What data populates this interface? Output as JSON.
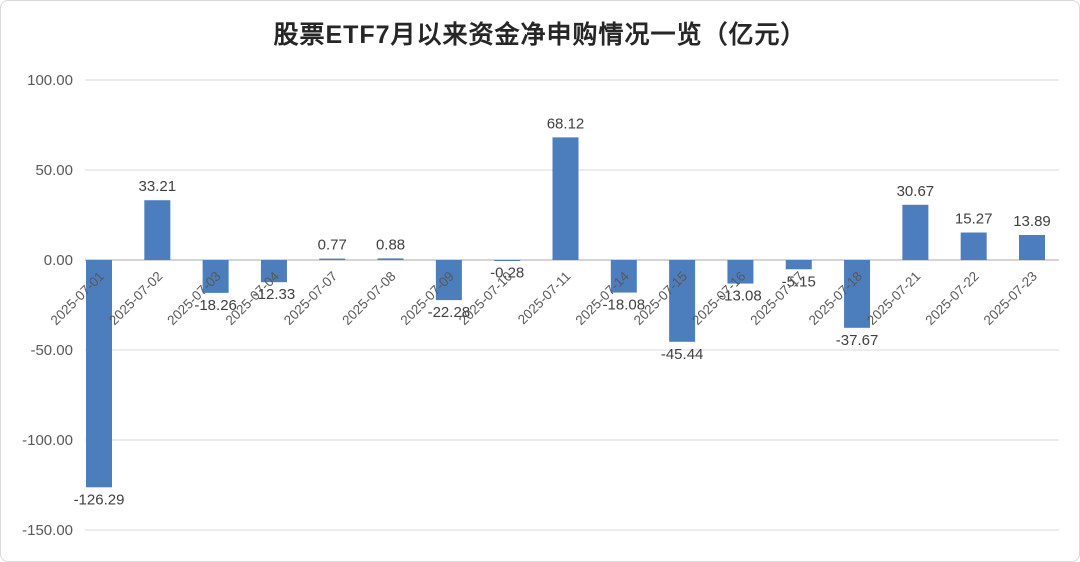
{
  "card": {
    "title": "股票ETF7月以来资金净申购情况一览（亿元）"
  },
  "chart_data": {
    "type": "bar",
    "title": "股票ETF7月以来资金净申购情况一览（亿元）",
    "categories": [
      "2025-07-01",
      "2025-07-02",
      "2025-07-03",
      "2025-07-04",
      "2025-07-07",
      "2025-07-08",
      "2025-07-09",
      "2025-07-10",
      "2025-07-11",
      "2025-07-14",
      "2025-07-15",
      "2025-07-16",
      "2025-07-17",
      "2025-07-18",
      "2025-07-21",
      "2025-07-22",
      "2025-07-23"
    ],
    "values": [
      -126.29,
      33.21,
      -18.26,
      -12.33,
      0.77,
      0.88,
      -22.28,
      -0.28,
      68.12,
      -18.08,
      -45.44,
      -13.08,
      -5.15,
      -37.67,
      30.67,
      15.27,
      13.89
    ],
    "xlabel": "",
    "ylabel": "",
    "ylim": [
      -150,
      100
    ],
    "ytick_interval": 50,
    "ytick_labels": [
      "100.00",
      "50.00",
      "0.00",
      "-50.00",
      "-100.00",
      "-150.00"
    ],
    "bar_color": "#4c7dbd",
    "grid": "horizontal",
    "gridline_color": "#d9d9d9",
    "value_labels_shown": true,
    "x_label_rotation_deg": -45,
    "legend": "none"
  }
}
